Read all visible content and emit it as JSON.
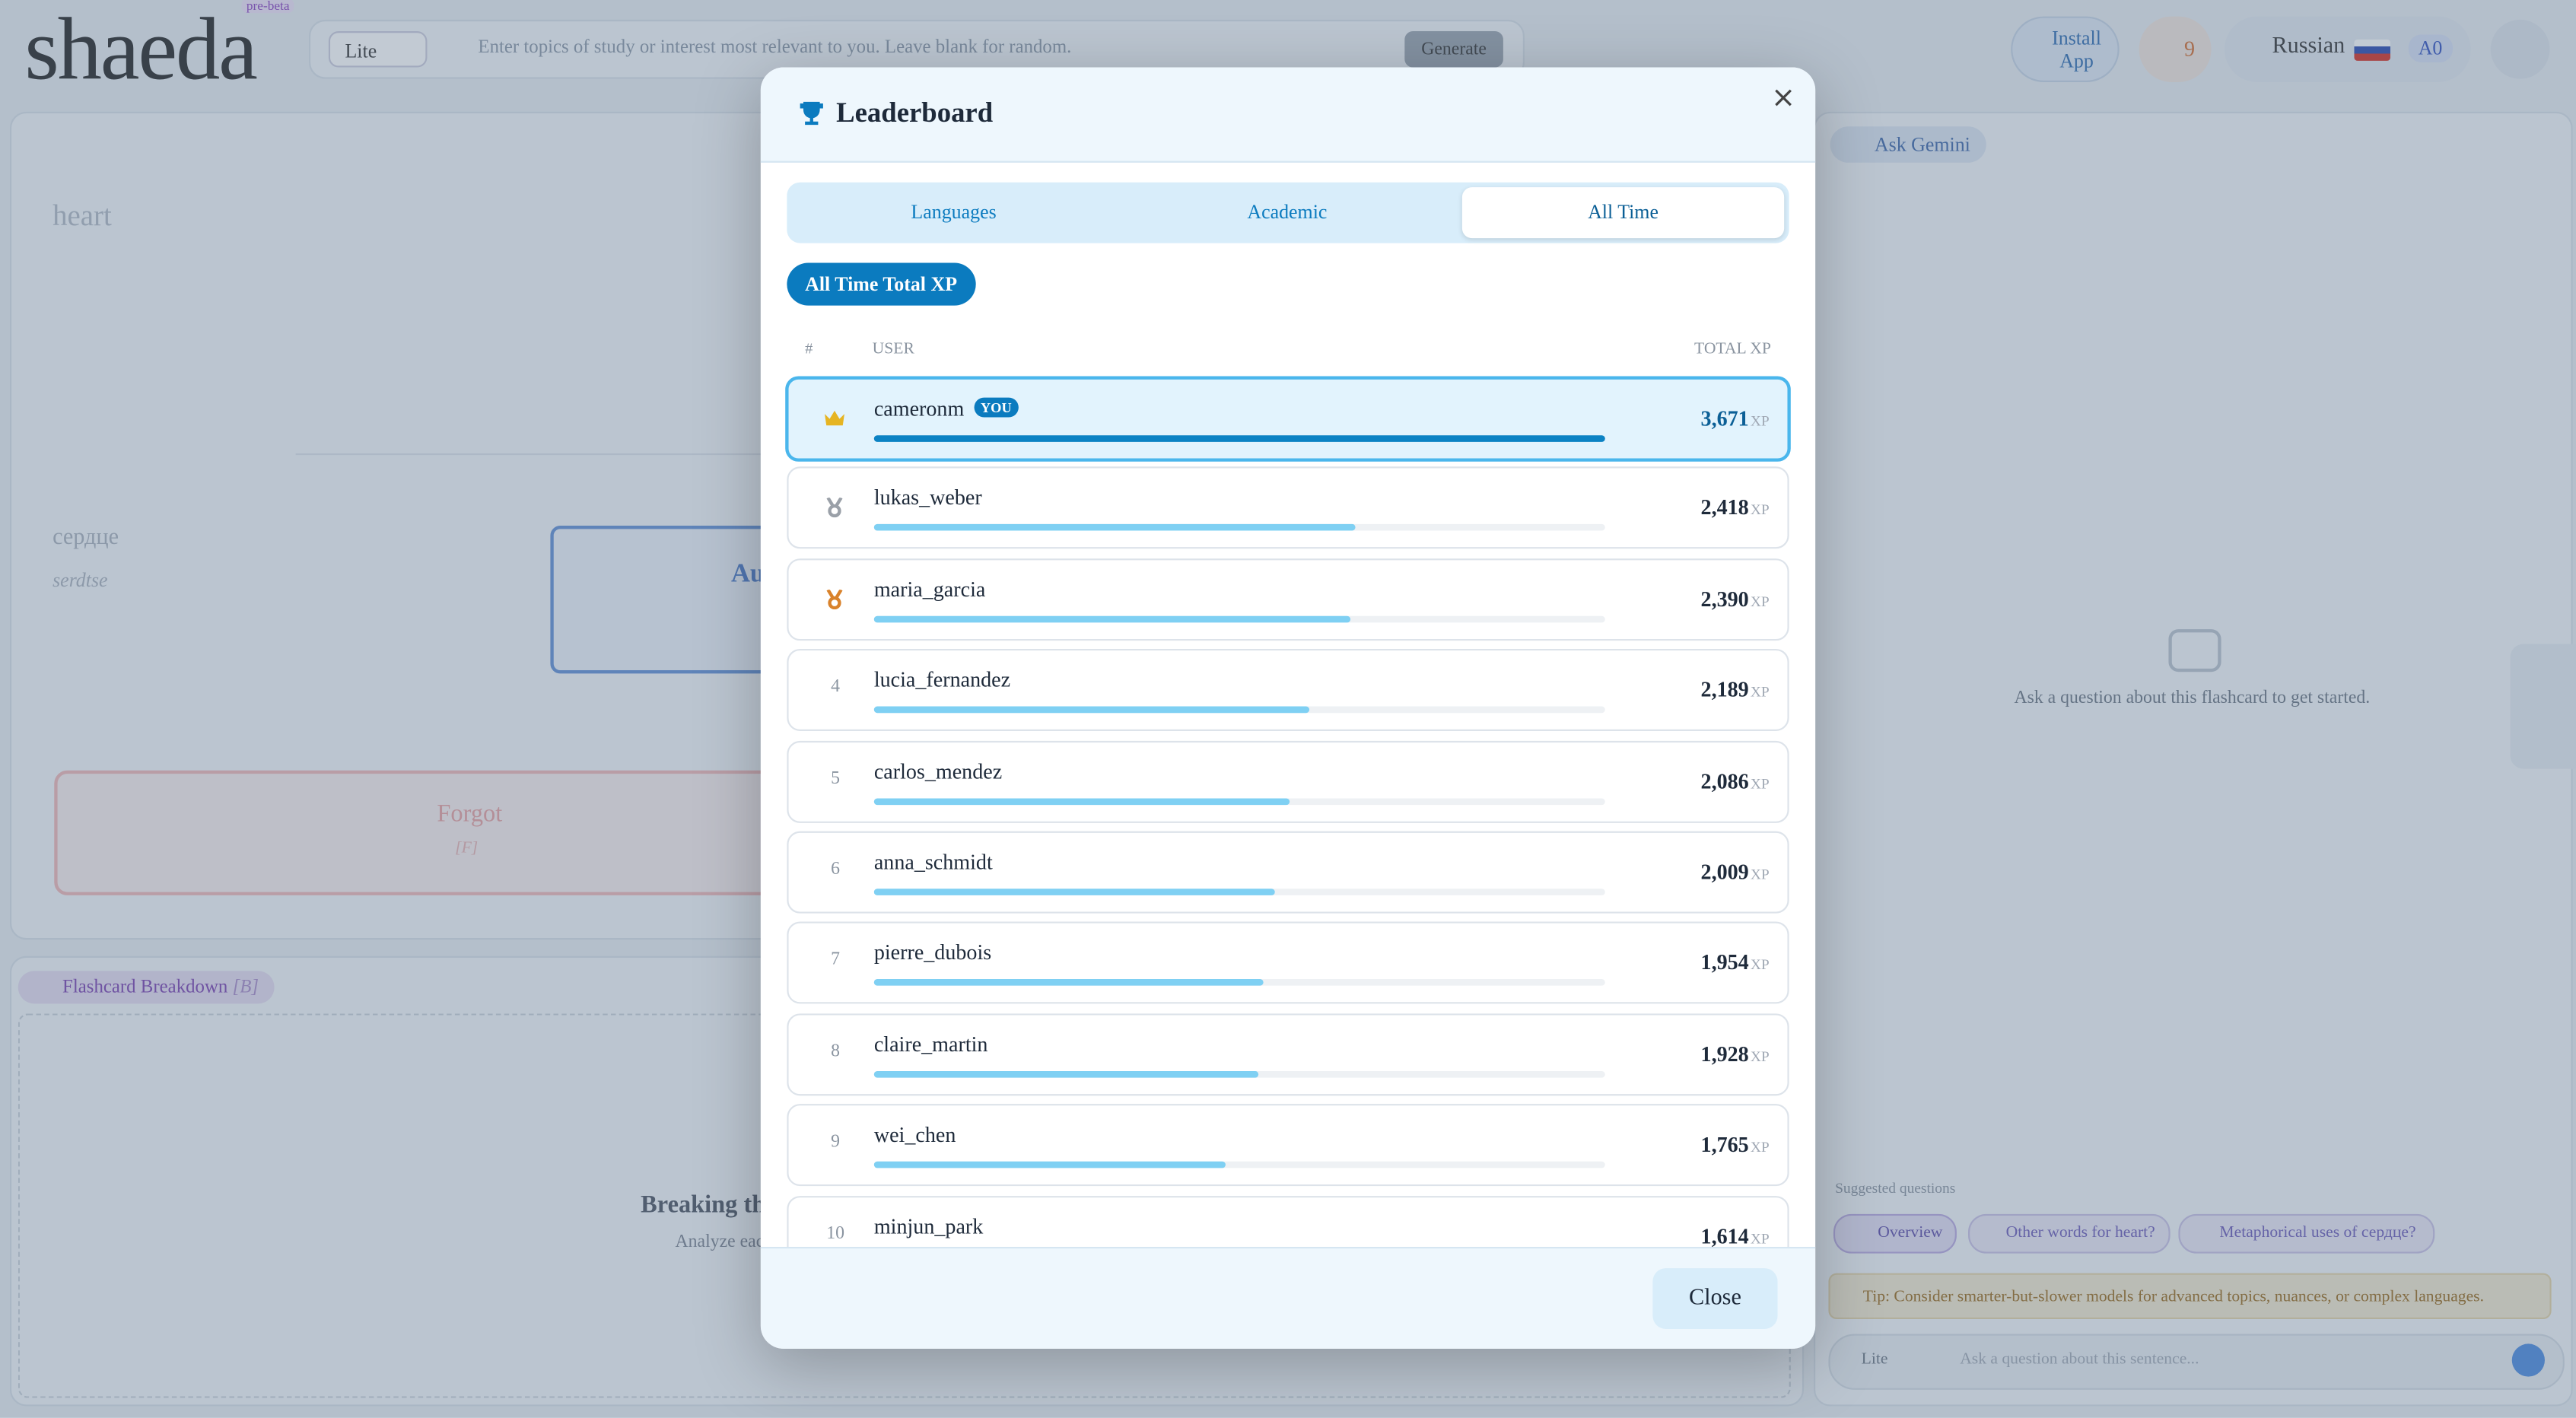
{
  "app": {
    "logo": "shaeda",
    "badge": "pre-beta",
    "model": "Lite",
    "topic_placeholder": "Enter topics of study or interest most relevant to you. Leave blank for random.",
    "generate": "Generate",
    "install": "Install App",
    "streak": "9",
    "language": "Russian",
    "level": "A0"
  },
  "card": {
    "word": "heart",
    "translation": "сердце",
    "transliteration": "serdtse",
    "answer_partial": "Au",
    "forgot": "Forgot",
    "forgot_key": "[F]"
  },
  "breakdown": {
    "tab": "Flashcard Breakdown",
    "tab_key": "[B]",
    "title_partial": "Breaking th",
    "subtitle_partial": "Analyze eac"
  },
  "gemini": {
    "button": "Ask Gemini",
    "empty": "Ask a question about this flashcard to get started.",
    "suggested_label": "Suggested questions",
    "suggestions": [
      "Overview",
      "Other words for heart?",
      "Metaphorical uses of сердце?"
    ],
    "tip": "Tip: Consider smarter-but-slower models for advanced topics, nuances, or complex languages.",
    "model": "Lite",
    "input_placeholder": "Ask a question about this sentence..."
  },
  "modal": {
    "title": "Leaderboard",
    "tabs": [
      "Languages",
      "Academic",
      "All Time"
    ],
    "filter": "All Time Total XP",
    "columns": [
      "#",
      "USER",
      "TOTAL XP"
    ],
    "you_badge": "YOU",
    "xp_unit": "XP",
    "close": "Close",
    "rows": [
      {
        "name": "cameronm",
        "xp": {
          "value": 3671,
          "label": "3,671"
        }
      },
      {
        "name": "lukas_weber",
        "xp": {
          "value": 2418,
          "label": "2,418"
        }
      },
      {
        "name": "maria_garcia",
        "xp": {
          "value": 2390,
          "label": "2,390"
        }
      },
      {
        "rank": 4,
        "name": "lucia_fernandez",
        "xp": {
          "value": 2189,
          "label": "2,189"
        }
      },
      {
        "rank": 5,
        "name": "carlos_mendez",
        "xp": {
          "value": 2086,
          "label": "2,086"
        }
      },
      {
        "rank": 6,
        "name": "anna_schmidt",
        "xp": {
          "value": 2009,
          "label": "2,009"
        }
      },
      {
        "rank": 7,
        "name": "pierre_dubois",
        "xp": {
          "value": 1954,
          "label": "1,954"
        }
      },
      {
        "rank": 8,
        "name": "claire_martin",
        "xp": {
          "value": 1928,
          "label": "1,928"
        }
      },
      {
        "rank": 9,
        "name": "wei_chen",
        "xp": {
          "value": 1765,
          "label": "1,765"
        }
      },
      {
        "rank": 10,
        "name": "minjun_park",
        "xp": {
          "value": 1614,
          "label": "1,614"
        }
      }
    ]
  }
}
